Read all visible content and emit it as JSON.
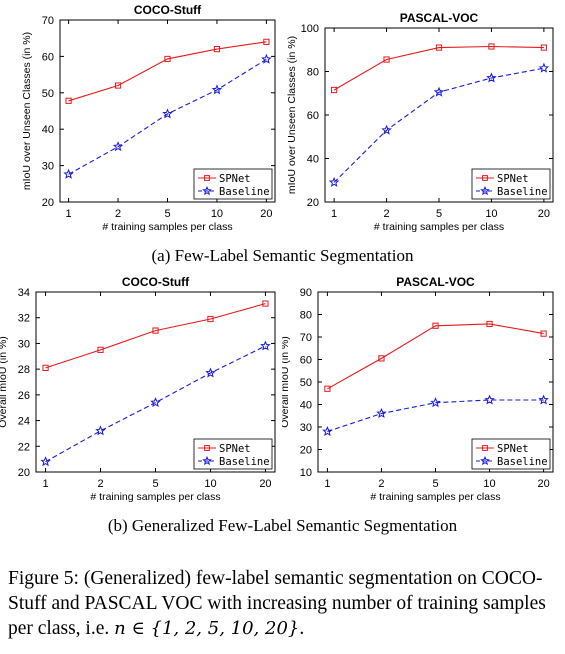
{
  "subcaptions": {
    "a": "(a) Few-Label Semantic Segmentation",
    "b": "(b) Generalized Few-Label Semantic Segmentation"
  },
  "caption": {
    "text": "Figure 5: (Generalized) few-label semantic segmentation on COCO-Stuff and PASCAL VOC with increasing number of training samples per class, i.e.",
    "math": "n ∈ {1, 2, 5, 10, 20}",
    "end": "."
  },
  "colors": {
    "spnet": "#e8191b",
    "baseline": "#1a1adb"
  },
  "chart_data": [
    {
      "id": "a-coco",
      "type": "line",
      "title": "COCO-Stuff",
      "xlabel": "# training samples per class",
      "ylabel": "mIoU over Unseen Classes (in %)",
      "categories": [
        "1",
        "2",
        "5",
        "10",
        "20"
      ],
      "ylim": [
        20,
        70
      ],
      "yticks": [
        20,
        30,
        40,
        50,
        60,
        70
      ],
      "series": [
        {
          "name": "SPNet",
          "values": [
            47.8,
            52.0,
            59.3,
            62.0,
            64.0
          ]
        },
        {
          "name": "Baseline",
          "values": [
            27.6,
            35.2,
            44.2,
            50.8,
            59.2
          ]
        }
      ],
      "legend": "bottom-right",
      "grid": false
    },
    {
      "id": "a-voc",
      "type": "line",
      "title": "PASCAL-VOC",
      "xlabel": "# training samples per class",
      "ylabel": "mIoU over Unseen Classes (in %)",
      "categories": [
        "1",
        "2",
        "5",
        "10",
        "20"
      ],
      "ylim": [
        20,
        100
      ],
      "yticks": [
        20,
        40,
        60,
        80,
        100
      ],
      "series": [
        {
          "name": "SPNet",
          "values": [
            71.5,
            85.5,
            91.0,
            91.5,
            91.0
          ]
        },
        {
          "name": "Baseline",
          "values": [
            29.0,
            53.0,
            70.5,
            77.0,
            81.5
          ]
        }
      ],
      "legend": "bottom-right",
      "grid": false
    },
    {
      "id": "b-coco",
      "type": "line",
      "title": "COCO-Stuff",
      "xlabel": "# training samples per class",
      "ylabel": "Overall mIoU (in %)",
      "categories": [
        "1",
        "2",
        "5",
        "10",
        "20"
      ],
      "ylim": [
        20,
        34
      ],
      "yticks": [
        20,
        22,
        24,
        26,
        28,
        30,
        32,
        34
      ],
      "series": [
        {
          "name": "SPNet",
          "values": [
            28.1,
            29.5,
            31.0,
            31.9,
            33.1
          ]
        },
        {
          "name": "Baseline",
          "values": [
            20.8,
            23.2,
            25.4,
            27.7,
            29.8
          ]
        }
      ],
      "legend": "bottom-right",
      "grid": false
    },
    {
      "id": "b-voc",
      "type": "line",
      "title": "PASCAL-VOC",
      "xlabel": "# training samples per class",
      "ylabel": "Overall mIoU (in %)",
      "categories": [
        "1",
        "2",
        "5",
        "10",
        "20"
      ],
      "ylim": [
        10,
        90
      ],
      "yticks": [
        10,
        20,
        30,
        40,
        50,
        60,
        70,
        80,
        90
      ],
      "series": [
        {
          "name": "SPNet",
          "values": [
            47.0,
            60.5,
            75.0,
            75.8,
            71.5
          ]
        },
        {
          "name": "Baseline",
          "values": [
            28.0,
            36.0,
            40.8,
            42.0,
            42.0
          ]
        }
      ],
      "legend": "bottom-right",
      "grid": false
    }
  ]
}
